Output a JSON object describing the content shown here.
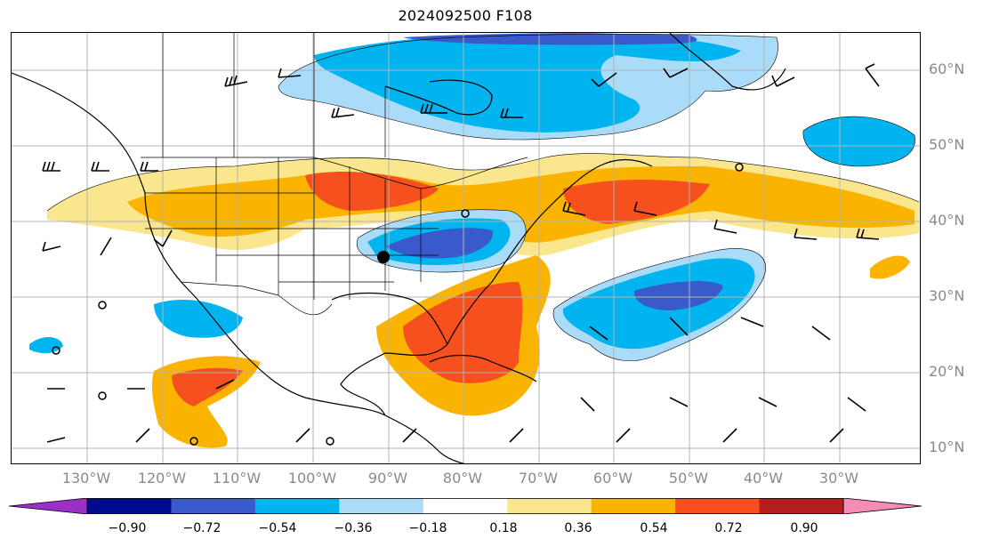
{
  "title": "2024092500 F108",
  "lat_labels": [
    "60°N",
    "50°N",
    "40°N",
    "30°N",
    "20°N",
    "10°N"
  ],
  "lon_labels": [
    "130°W",
    "120°W",
    "110°W",
    "100°W",
    "90°W",
    "80°W",
    "70°W",
    "60°W",
    "50°W",
    "40°W",
    "30°W"
  ],
  "colorbar": {
    "ticks": [
      "−0.90",
      "−0.72",
      "−0.54",
      "−0.36",
      "−0.18",
      "0.18",
      "0.36",
      "0.54",
      "0.72",
      "0.90"
    ],
    "colors": [
      "#9b30c8",
      "#000a8c",
      "#3a5acc",
      "#00b4f0",
      "#aadcfa",
      "#ffffff",
      "#fae68c",
      "#fab400",
      "#f5501e",
      "#b41e1e",
      "#f58cb4"
    ]
  }
}
